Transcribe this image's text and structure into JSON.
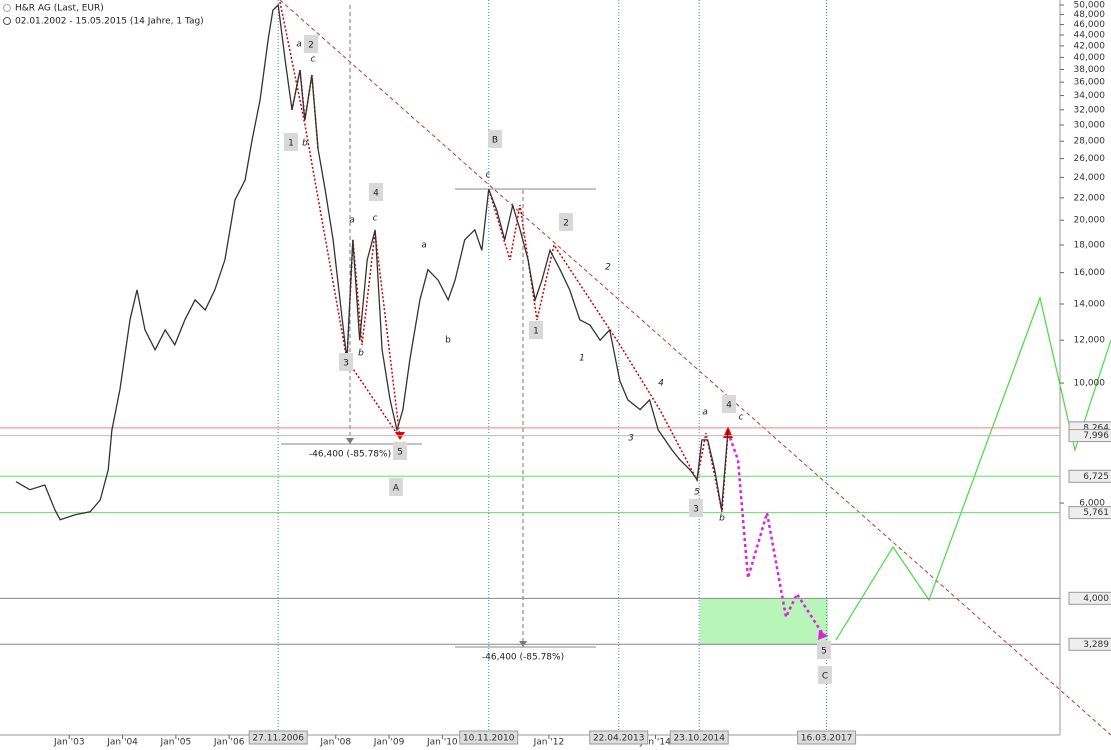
{
  "chart_data": {
    "type": "line",
    "title": "H&R AG (Last, EUR)",
    "subtitle": "02.01.2002 - 15.05.2015 (14 Jahre, 1 Tag)",
    "log_scale": true,
    "xlim": [
      2001.7,
      2021.59
    ],
    "ylim": [
      2.54,
      51.07
    ],
    "yticks": [
      {
        "value": 50,
        "label": "50,000"
      },
      {
        "value": 48,
        "label": "48,000"
      },
      {
        "value": 46,
        "label": "46,000"
      },
      {
        "value": 44,
        "label": "44,000"
      },
      {
        "value": 42,
        "label": "42,000"
      },
      {
        "value": 40,
        "label": "40,000"
      },
      {
        "value": 38,
        "label": "38,000"
      },
      {
        "value": 36,
        "label": "36,000"
      },
      {
        "value": 34,
        "label": "34,000"
      },
      {
        "value": 32,
        "label": "32,000"
      },
      {
        "value": 30,
        "label": "30,000"
      },
      {
        "value": 28,
        "label": "28,000"
      },
      {
        "value": 26,
        "label": "26,000"
      },
      {
        "value": 24,
        "label": "24,000"
      },
      {
        "value": 22,
        "label": "22,000"
      },
      {
        "value": 20,
        "label": "20,000"
      },
      {
        "value": 18,
        "label": "18,000"
      },
      {
        "value": 16,
        "label": "16,000"
      },
      {
        "value": 14,
        "label": "14,000"
      },
      {
        "value": 12,
        "label": "12,000"
      },
      {
        "value": 10,
        "label": "10,000"
      },
      {
        "value": 6,
        "label": "6,000"
      }
    ],
    "xticks": [
      {
        "value": 2003,
        "label": "Jan '03"
      },
      {
        "value": 2004,
        "label": "Jan '04"
      },
      {
        "value": 2005,
        "label": "Jan '05"
      },
      {
        "value": 2006,
        "label": "Jan '06"
      },
      {
        "value": 2008,
        "label": "Jan '08"
      },
      {
        "value": 2009,
        "label": "Jan '09"
      },
      {
        "value": 2010,
        "label": "Jan '10"
      },
      {
        "value": 2012,
        "label": "Jan '12"
      },
      {
        "value": 2014,
        "label": "Jan '14"
      }
    ],
    "date_markers": [
      {
        "value": 2006.92,
        "label": "27.11.2006"
      },
      {
        "value": 2010.87,
        "label": "10.11.2010"
      },
      {
        "value": 2013.31,
        "label": "22.04.2013"
      },
      {
        "value": 2014.82,
        "label": "23.10.2014"
      },
      {
        "value": 2017.21,
        "label": "16.03.2017"
      }
    ],
    "levels": [
      {
        "value": 8.264,
        "label": "8,264",
        "color": "#f08080"
      },
      {
        "value": 7.996,
        "label": "7,996",
        "color": "#bbbbbb"
      },
      {
        "value": 6.725,
        "label": "6,725",
        "color": "#66dd66"
      },
      {
        "value": 5.761,
        "label": "5,761",
        "color": "#66dd66"
      },
      {
        "value": 4.0,
        "label": "4,000",
        "color": "#888888"
      },
      {
        "value": 3.289,
        "label": "3,289",
        "color": "#888888"
      }
    ],
    "measurements": [
      "-46,400 (-85.78%)",
      "-46,400 (-85.78%)"
    ],
    "wave_labels": [
      "2",
      "1",
      "4",
      "3",
      "5",
      "2",
      "1",
      "4",
      "3",
      "5",
      "B",
      "A",
      "C",
      "a",
      "c",
      "b",
      "a",
      "c",
      "b",
      "c",
      "a",
      "c",
      "b",
      "a",
      "b",
      "2",
      "1",
      "4",
      "3",
      "5"
    ],
    "series": [
      {
        "color": "#333333",
        "x": [
          2002.0,
          2002.26,
          2002.54,
          2002.73,
          2002.83,
          2003.11,
          2003.39,
          2003.58,
          2003.73,
          2003.8,
          2003.95,
          2004.14,
          2004.27,
          2004.42,
          2004.61,
          2004.8,
          2004.98,
          2005.17,
          2005.36,
          2005.55,
          2005.73,
          2005.92,
          2006.11,
          2006.3,
          2006.43,
          2006.58,
          2006.73,
          2006.82,
          2006.92,
          2007.05,
          2007.18,
          2007.33,
          2007.42,
          2007.55,
          2007.67,
          2007.8,
          2007.95,
          2008.08,
          2008.21,
          2008.32,
          2008.45,
          2008.59,
          2008.74,
          2008.87,
          2009.02,
          2009.15,
          2009.26,
          2009.39,
          2009.58,
          2009.73,
          2009.92,
          2010.11,
          2010.24,
          2010.42,
          2010.61,
          2010.74,
          2010.87,
          2011.02,
          2011.17,
          2011.32,
          2011.46,
          2011.61,
          2011.74,
          2011.87,
          2012.02,
          2012.21,
          2012.39,
          2012.58,
          2012.77,
          2012.96,
          2013.14,
          2013.33,
          2013.48,
          2013.71,
          2013.89,
          2014.05,
          2014.18,
          2014.31,
          2014.46,
          2014.65,
          2014.78,
          2014.87,
          2014.98,
          2015.11,
          2015.24,
          2015.36
        ],
        "values": [
          6.57,
          6.35,
          6.48,
          5.83,
          5.59,
          5.71,
          5.78,
          6.08,
          6.91,
          8.19,
          9.72,
          13.09,
          14.87,
          12.54,
          11.52,
          12.54,
          11.77,
          13.09,
          14.25,
          13.65,
          14.87,
          16.89,
          21.8,
          23.74,
          28.15,
          33.4,
          43.1,
          48.9,
          50.0,
          39.6,
          32.0,
          37.9,
          30.6,
          37.1,
          27.0,
          22.8,
          18.4,
          14.25,
          11.03,
          18.4,
          12.0,
          16.89,
          19.2,
          11.52,
          9.31,
          8.19,
          8.93,
          11.03,
          14.25,
          16.2,
          15.5,
          14.25,
          15.5,
          18.4,
          19.2,
          17.6,
          22.8,
          20.9,
          18.4,
          21.3,
          19.2,
          16.89,
          14.25,
          15.5,
          17.6,
          16.2,
          14.87,
          13.09,
          12.8,
          12.0,
          12.54,
          10.1,
          9.31,
          8.93,
          9.31,
          8.19,
          7.85,
          7.52,
          7.21,
          6.91,
          6.63,
          7.85,
          7.85,
          6.91,
          5.83,
          8.19
        ]
      }
    ]
  }
}
